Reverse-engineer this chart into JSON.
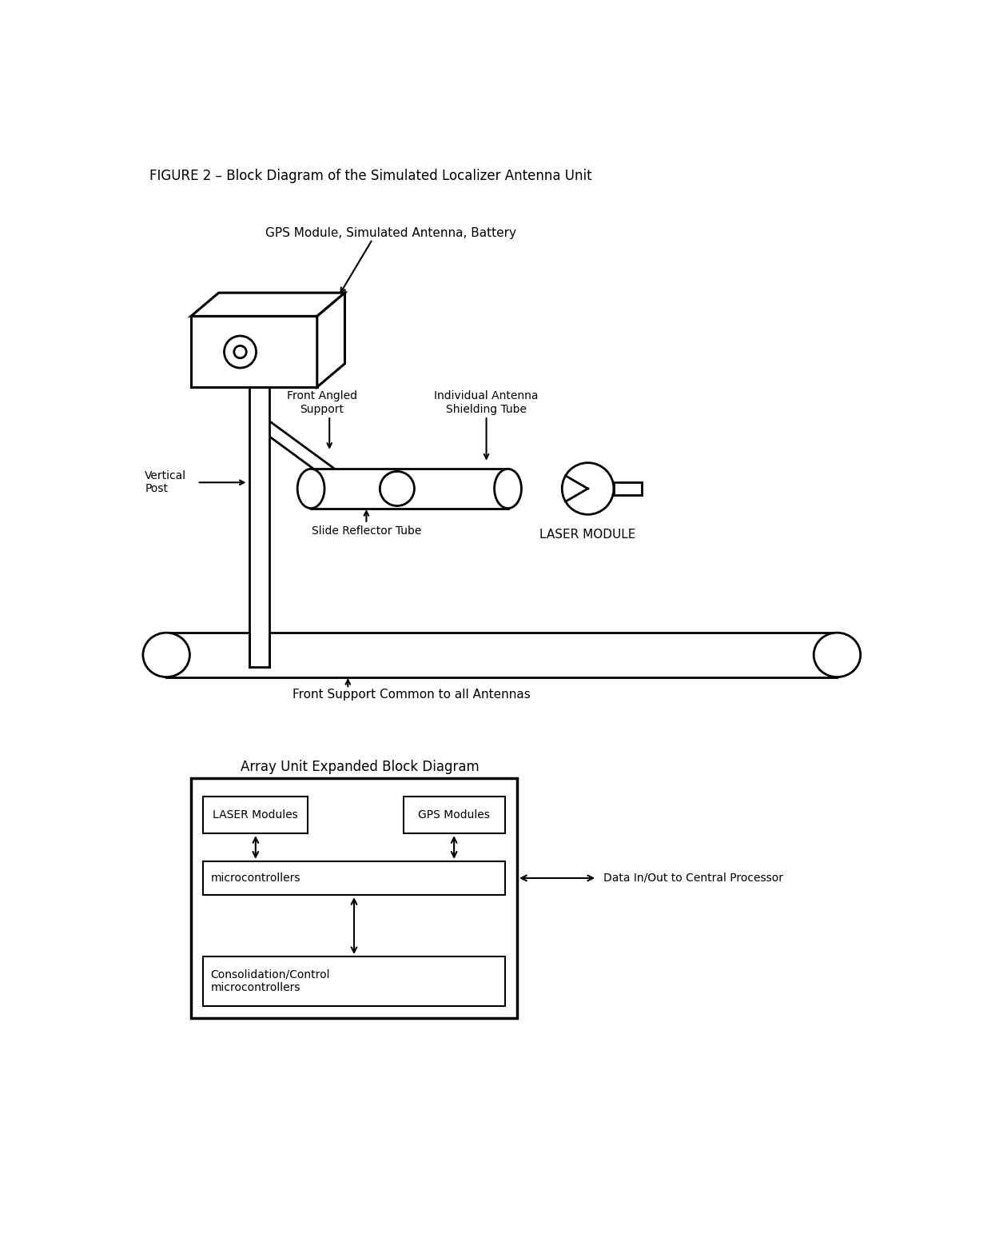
{
  "title": "FIGURE 2 – Block Diagram of the Simulated Localizer Antenna Unit",
  "bg_color": "#ffffff",
  "text_color": "#000000",
  "line_color": "#000000",
  "labels": {
    "gps_module": "GPS Module, Simulated Antenna, Battery",
    "front_angled": "Front Angled\nSupport",
    "individual_antenna": "Individual Antenna\nShielding Tube",
    "vertical_post": "Vertical\nPost",
    "slide_reflector": "Slide Reflector Tube",
    "laser_module": "LASER MODULE",
    "front_support": "Front Support Common to all Antennas",
    "array_unit": "Array Unit Expanded Block Diagram",
    "laser_modules_box": "LASER Modules",
    "gps_modules_box": "GPS Modules",
    "microcontrollers_box": "microcontrollers",
    "consolidation_box": "Consolidation/Control\nmicrocontrollers",
    "data_inout": "Data In/Out to Central Processor"
  }
}
